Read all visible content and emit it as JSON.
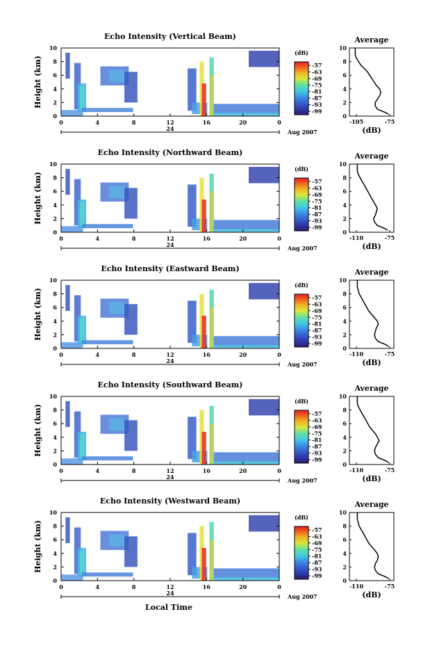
{
  "chart_data": [
    {
      "type": "heatmap",
      "title": "Echo Intensity (Vertical Beam)",
      "ylabel": "Height (km)",
      "yticks": [
        "0",
        "2",
        "4",
        "6",
        "8",
        "10"
      ],
      "xticks": [
        "0",
        "4",
        "8",
        "12",
        "16",
        "20",
        "0"
      ],
      "day_label": "24",
      "date_label": "Aug 2007",
      "colorbar": {
        "unit": "(dB)",
        "ticks": [
          "-57",
          "-63",
          "-69",
          "-75",
          "-81",
          "-87",
          "-93",
          "-99"
        ]
      },
      "profile": {
        "title": "Average",
        "xlabel": "(dB)",
        "xticks": [
          "-105",
          "-75"
        ],
        "yticks": [
          "0",
          "2",
          "4",
          "6",
          "8",
          "10"
        ],
        "x": [
          -76,
          -80,
          -86,
          -88,
          -88,
          -86,
          -84,
          -83,
          -84,
          -87,
          -89,
          -91,
          -93,
          -95,
          -98,
          -101,
          -103,
          -105,
          -106,
          -106,
          -106
        ],
        "y": [
          0.3,
          0.6,
          1.0,
          1.5,
          2.0,
          2.5,
          3.0,
          3.5,
          4.0,
          4.5,
          5.0,
          5.5,
          6.0,
          6.5,
          7.0,
          7.5,
          8.0,
          8.5,
          9.0,
          9.5,
          10.0
        ]
      }
    },
    {
      "type": "heatmap",
      "title": "Echo Intensity (Northward Beam)",
      "ylabel": "Height (km)",
      "yticks": [
        "0",
        "2",
        "4",
        "6",
        "8",
        "10"
      ],
      "xticks": [
        "0",
        "4",
        "8",
        "12",
        "16",
        "20",
        "0"
      ],
      "day_label": "24",
      "date_label": "Aug 2007",
      "colorbar": {
        "unit": "(dB)",
        "ticks": [
          "-57",
          "-63",
          "-69",
          "-75",
          "-81",
          "-87",
          "-93",
          "-99"
        ]
      },
      "profile": {
        "title": "Average",
        "xlabel": "(dB)",
        "xticks": [
          "-110",
          "-75"
        ],
        "yticks": [
          "0",
          "2",
          "4",
          "6",
          "8",
          "10"
        ],
        "x": [
          -77,
          -81,
          -88,
          -91,
          -92,
          -90,
          -89,
          -88,
          -90,
          -92,
          -94,
          -96,
          -98,
          -100,
          -102,
          -104,
          -106,
          -108,
          -109,
          -109,
          -109
        ],
        "y": [
          0.3,
          0.6,
          1.0,
          1.5,
          2.0,
          2.5,
          3.0,
          3.5,
          4.0,
          4.5,
          5.0,
          5.5,
          6.0,
          6.5,
          7.0,
          7.5,
          8.0,
          8.5,
          9.0,
          9.5,
          10.0
        ]
      }
    },
    {
      "type": "heatmap",
      "title": "Echo Intensity (Eastward Beam)",
      "ylabel": "Height (km)",
      "yticks": [
        "0",
        "2",
        "4",
        "6",
        "8",
        "10"
      ],
      "xticks": [
        "0",
        "4",
        "8",
        "12",
        "16",
        "20",
        "0"
      ],
      "day_label": "24",
      "date_label": "Aug 2007",
      "colorbar": {
        "unit": "(dB)",
        "ticks": [
          "-57",
          "-63",
          "-69",
          "-75",
          "-81",
          "-87",
          "-93",
          "-99"
        ]
      },
      "profile": {
        "title": "Average",
        "xlabel": "(dB)",
        "xticks": [
          "-110",
          "-75"
        ],
        "yticks": [
          "0",
          "2",
          "4",
          "6",
          "8",
          "10"
        ],
        "x": [
          -76,
          -80,
          -87,
          -90,
          -91,
          -90,
          -89,
          -87,
          -88,
          -91,
          -94,
          -97,
          -99,
          -101,
          -103,
          -105,
          -107,
          -108,
          -109,
          -109,
          -109
        ],
        "y": [
          0.3,
          0.6,
          1.0,
          1.5,
          2.0,
          2.5,
          3.0,
          3.5,
          4.0,
          4.5,
          5.0,
          5.5,
          6.0,
          6.5,
          7.0,
          7.5,
          8.0,
          8.5,
          9.0,
          9.5,
          10.0
        ]
      }
    },
    {
      "type": "heatmap",
      "title": "Echo Intensity (Southward Beam)",
      "ylabel": "Height (km)",
      "yticks": [
        "0",
        "2",
        "4",
        "6",
        "8",
        "10"
      ],
      "xticks": [
        "0",
        "4",
        "8",
        "12",
        "16",
        "20",
        "0"
      ],
      "day_label": "24",
      "date_label": "Aug 2007",
      "colorbar": {
        "unit": "(dB)",
        "ticks": [
          "-57",
          "-63",
          "-69",
          "-75",
          "-81",
          "-87",
          "-93",
          "-99"
        ]
      },
      "profile": {
        "title": "Average",
        "xlabel": "(dB)",
        "xticks": [
          "-110",
          "-75"
        ],
        "yticks": [
          "0",
          "2",
          "4",
          "6",
          "8",
          "10"
        ],
        "x": [
          -76,
          -80,
          -87,
          -90,
          -91,
          -90,
          -88,
          -86,
          -88,
          -90,
          -93,
          -96,
          -98,
          -100,
          -102,
          -104,
          -106,
          -108,
          -109,
          -109,
          -109
        ],
        "y": [
          0.3,
          0.6,
          1.0,
          1.5,
          2.0,
          2.5,
          3.0,
          3.5,
          4.0,
          4.5,
          5.0,
          5.5,
          6.0,
          6.5,
          7.0,
          7.5,
          8.0,
          8.5,
          9.0,
          9.5,
          10.0
        ]
      }
    },
    {
      "type": "heatmap",
      "title": "Echo Intensity (Westward Beam)",
      "ylabel": "Height (km)",
      "yticks": [
        "0",
        "2",
        "4",
        "6",
        "8",
        "10"
      ],
      "xticks": [
        "0",
        "4",
        "8",
        "12",
        "16",
        "20",
        "0"
      ],
      "day_label": "24",
      "date_label": "Aug 2007",
      "xlabel": "Local Time",
      "colorbar": {
        "unit": "(dB)",
        "ticks": [
          "-57",
          "-63",
          "-69",
          "-75",
          "-81",
          "-87",
          "-93",
          "-99"
        ]
      },
      "profile": {
        "title": "Average",
        "xlabel": "(dB)",
        "xticks": [
          "-110",
          "-75"
        ],
        "yticks": [
          "0",
          "2",
          "4",
          "6",
          "8",
          "10"
        ],
        "x": [
          -76,
          -80,
          -87,
          -90,
          -91,
          -90,
          -88,
          -87,
          -88,
          -91,
          -94,
          -97,
          -99,
          -101,
          -103,
          -105,
          -107,
          -108,
          -109,
          -109,
          -109
        ],
        "y": [
          0.3,
          0.6,
          1.0,
          1.5,
          2.0,
          2.5,
          3.0,
          3.5,
          4.0,
          4.5,
          5.0,
          5.5,
          6.0,
          6.5,
          7.0,
          7.5,
          8.0,
          8.5,
          9.0,
          9.5,
          10.0
        ]
      }
    }
  ]
}
